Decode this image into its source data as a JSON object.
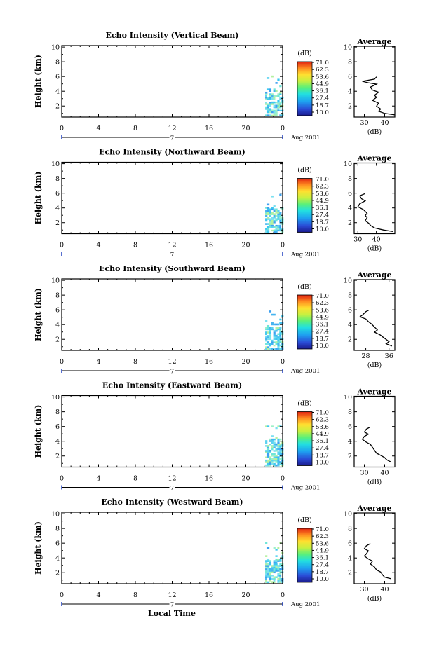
{
  "figure": {
    "xlabel_bottom": "Local Time",
    "ylabel": "Height (km)",
    "date_label": "Aug 2001",
    "day_label": "7",
    "colorbar_unit": "(dB)",
    "colorbar_ticks": [
      "71.0",
      "62.3",
      "53.6",
      "44.9",
      "36.1",
      "27.4",
      "18.7",
      "10.0"
    ],
    "avg_title": "Average",
    "avg_xlabel": "(dB)",
    "x_ticks": [
      "0",
      "4",
      "8",
      "12",
      "16",
      "20",
      "0"
    ],
    "y_ticks": [
      "10",
      "8",
      "6",
      "4",
      "2"
    ]
  },
  "panels": [
    {
      "title": "Echo Intensity (Vertical Beam)"
    },
    {
      "title": "Echo Intensity (Northward Beam)"
    },
    {
      "title": "Echo Intensity (Southward Beam)"
    },
    {
      "title": "Echo Intensity (Eastward Beam)"
    },
    {
      "title": "Echo Intensity (Westward Beam)"
    }
  ],
  "chart_data": [
    {
      "type": "heatmap",
      "title": "Echo Intensity (Vertical Beam)",
      "xlabel": "",
      "ylabel": "Height (km)",
      "xlim": [
        0,
        24
      ],
      "ylim": [
        0.5,
        10.2
      ],
      "colorscale_range_db": [
        10.0,
        71.0
      ],
      "echo_region": {
        "time_start": 21.8,
        "time_end": 24.0,
        "height_min": 0.6,
        "height_max": 6.0
      },
      "average_profile": {
        "title": "Average",
        "xlabel": "(dB)",
        "xlim": [
          25,
          45
        ],
        "x_ticks": [
          30,
          40
        ],
        "points": [
          [
            36,
            6.0
          ],
          [
            35,
            5.7
          ],
          [
            29,
            5.4
          ],
          [
            32,
            5.2
          ],
          [
            36,
            5.0
          ],
          [
            33,
            4.6
          ],
          [
            34,
            4.2
          ],
          [
            37,
            3.9
          ],
          [
            35,
            3.5
          ],
          [
            36,
            3.2
          ],
          [
            34,
            2.8
          ],
          [
            37,
            2.4
          ],
          [
            36,
            2.0
          ],
          [
            38,
            1.6
          ],
          [
            37,
            1.3
          ],
          [
            40,
            1.0
          ],
          [
            45,
            0.8
          ]
        ]
      }
    },
    {
      "type": "heatmap",
      "title": "Echo Intensity (Northward Beam)",
      "xlabel": "",
      "ylabel": "Height (km)",
      "xlim": [
        0,
        24
      ],
      "ylim": [
        0.5,
        10.2
      ],
      "colorscale_range_db": [
        10.0,
        71.0
      ],
      "echo_region": {
        "time_start": 21.8,
        "time_end": 24.0,
        "height_min": 0.6,
        "height_max": 6.0
      },
      "average_profile": {
        "title": "Average",
        "xlabel": "(dB)",
        "xlim": [
          28,
          50
        ],
        "x_ticks": [
          30,
          40
        ],
        "points": [
          [
            34,
            6.0
          ],
          [
            31,
            5.7
          ],
          [
            32,
            5.3
          ],
          [
            34,
            5.0
          ],
          [
            31,
            4.6
          ],
          [
            30,
            4.2
          ],
          [
            33,
            3.8
          ],
          [
            35,
            3.3
          ],
          [
            34,
            3.0
          ],
          [
            35,
            2.7
          ],
          [
            34,
            2.3
          ],
          [
            36,
            1.9
          ],
          [
            37,
            1.6
          ],
          [
            39,
            1.3
          ],
          [
            44,
            1.0
          ],
          [
            49,
            0.8
          ]
        ]
      }
    },
    {
      "type": "heatmap",
      "title": "Echo Intensity (Southward Beam)",
      "xlabel": "",
      "ylabel": "Height (km)",
      "xlim": [
        0,
        24
      ],
      "ylim": [
        0.5,
        10.2
      ],
      "colorscale_range_db": [
        10.0,
        71.0
      ],
      "echo_region": {
        "time_start": 21.8,
        "time_end": 24.0,
        "height_min": 0.6,
        "height_max": 6.0
      },
      "average_profile": {
        "title": "Average",
        "xlabel": "(dB)",
        "xlim": [
          24,
          38
        ],
        "x_ticks": [
          28,
          36
        ],
        "points": [
          [
            29,
            6.0
          ],
          [
            28,
            5.8
          ],
          [
            27,
            5.4
          ],
          [
            26,
            5.1
          ],
          [
            28,
            4.8
          ],
          [
            29,
            4.4
          ],
          [
            30,
            4.1
          ],
          [
            31,
            3.7
          ],
          [
            32,
            3.3
          ],
          [
            31,
            3.0
          ],
          [
            33,
            2.6
          ],
          [
            34,
            2.3
          ],
          [
            35,
            2.0
          ],
          [
            36,
            1.7
          ],
          [
            35,
            1.4
          ],
          [
            37,
            1.1
          ]
        ]
      }
    },
    {
      "type": "heatmap",
      "title": "Echo Intensity (Eastward Beam)",
      "xlabel": "",
      "ylabel": "Height (km)",
      "xlim": [
        0,
        24
      ],
      "ylim": [
        0.5,
        10.2
      ],
      "colorscale_range_db": [
        10.0,
        71.0
      ],
      "echo_region": {
        "time_start": 21.8,
        "time_end": 24.0,
        "height_min": 0.6,
        "height_max": 6.0
      },
      "average_profile": {
        "title": "Average",
        "xlabel": "(dB)",
        "xlim": [
          25,
          45
        ],
        "x_ticks": [
          30,
          40
        ],
        "points": [
          [
            33,
            6.0
          ],
          [
            31,
            5.7
          ],
          [
            30,
            5.3
          ],
          [
            32,
            5.0
          ],
          [
            30,
            4.7
          ],
          [
            29,
            4.3
          ],
          [
            31,
            3.9
          ],
          [
            33,
            3.6
          ],
          [
            34,
            3.2
          ],
          [
            35,
            2.8
          ],
          [
            36,
            2.4
          ],
          [
            38,
            2.1
          ],
          [
            40,
            1.8
          ],
          [
            41,
            1.5
          ],
          [
            43,
            1.2
          ]
        ]
      }
    },
    {
      "type": "heatmap",
      "title": "Echo Intensity (Westward Beam)",
      "xlabel": "Local Time",
      "ylabel": "Height (km)",
      "xlim": [
        0,
        24
      ],
      "ylim": [
        0.5,
        10.2
      ],
      "colorscale_range_db": [
        10.0,
        71.0
      ],
      "echo_region": {
        "time_start": 21.8,
        "time_end": 24.0,
        "height_min": 0.6,
        "height_max": 6.0
      },
      "average_profile": {
        "title": "Average",
        "xlabel": "(dB)",
        "xlim": [
          25,
          45
        ],
        "x_ticks": [
          30,
          40
        ],
        "points": [
          [
            33,
            6.0
          ],
          [
            31,
            5.7
          ],
          [
            30,
            5.3
          ],
          [
            32,
            5.0
          ],
          [
            31,
            4.6
          ],
          [
            30,
            4.3
          ],
          [
            32,
            3.9
          ],
          [
            34,
            3.6
          ],
          [
            33,
            3.2
          ],
          [
            35,
            2.8
          ],
          [
            36,
            2.4
          ],
          [
            38,
            2.1
          ],
          [
            39,
            1.7
          ],
          [
            40,
            1.4
          ],
          [
            43,
            1.2
          ]
        ]
      }
    }
  ]
}
